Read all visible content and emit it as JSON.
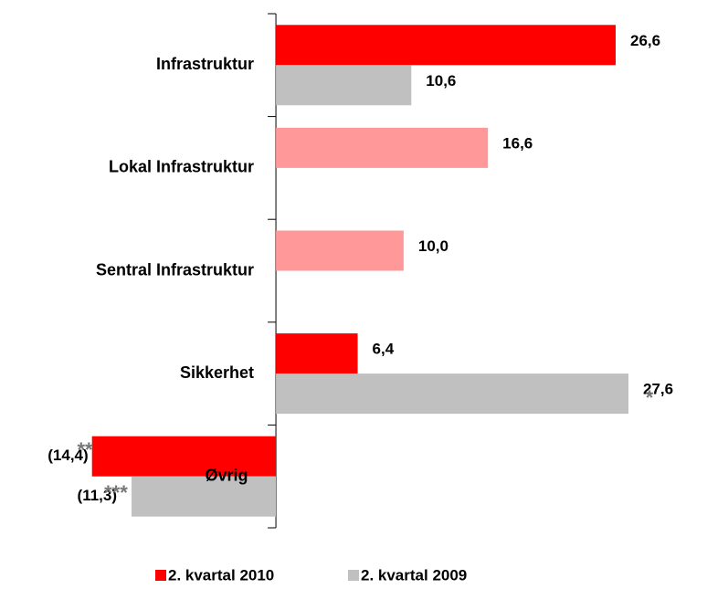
{
  "chart_data": {
    "type": "hbar",
    "categories": [
      "Infrastruktur",
      "Lokal Infrastruktur",
      "Sentral Infrastruktur",
      "Sikkerhet",
      "Øvrig"
    ],
    "series": [
      {
        "name": "2. kvartal 2010",
        "color": "#ff0000",
        "point_colors": [
          "#ff0000",
          "#ff9999",
          "#ff9999",
          "#ff0000",
          "#ff0000"
        ],
        "values": [
          26.6,
          16.6,
          10.0,
          6.4,
          -14.4
        ],
        "value_labels": [
          "26,6",
          "16,6",
          "10,0",
          "6,4",
          "(14,4)"
        ]
      },
      {
        "name": "2. kvartal 2009",
        "color": "#c0c0c0",
        "values": [
          10.6,
          null,
          null,
          27.6,
          -11.3
        ],
        "value_labels": [
          "10,6",
          null,
          null,
          "27,6",
          "(11,3)"
        ]
      }
    ],
    "annotations": [
      "*",
      "**",
      "***"
    ],
    "xlim": [
      -15,
      28
    ],
    "legend": "bottom"
  }
}
